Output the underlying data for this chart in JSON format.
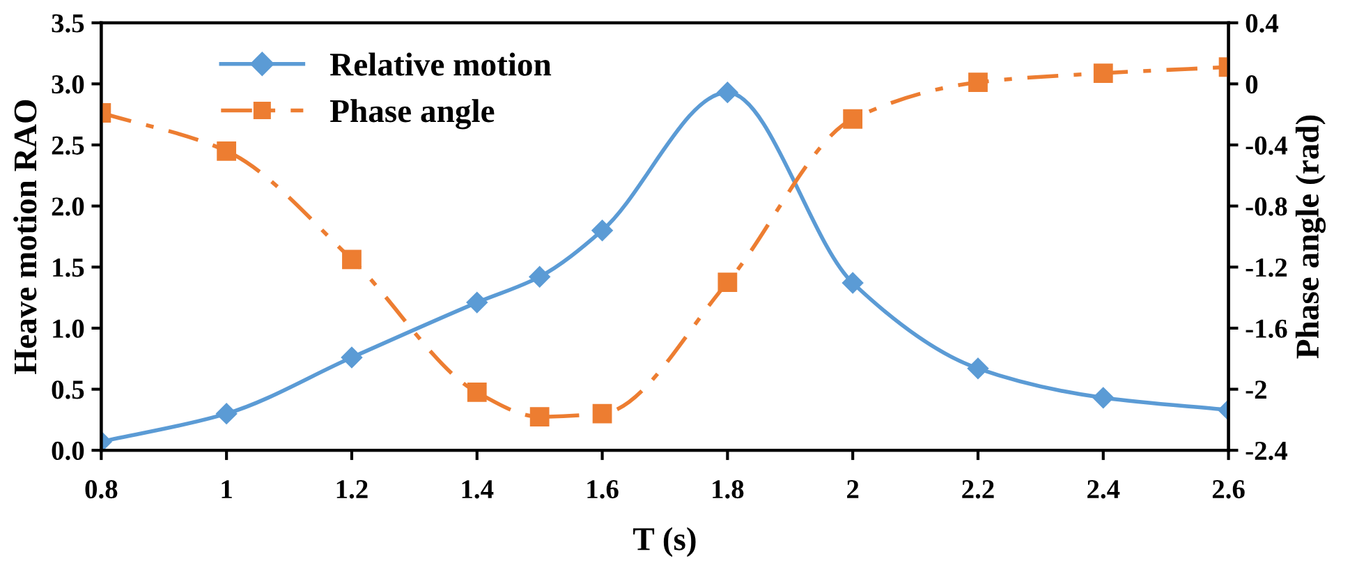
{
  "chart_data": {
    "type": "line",
    "xlabel": "T (s)",
    "ylabel": "Heave motion RAO",
    "y2label": "Phase angle (rad)",
    "x": [
      0.8,
      1.0,
      1.2,
      1.4,
      1.5,
      1.6,
      1.8,
      2.0,
      2.2,
      2.4,
      2.6
    ],
    "series": [
      {
        "name": "Relative motion",
        "color": "#5b9bd5",
        "marker": "diamond",
        "line_style": "solid",
        "values": [
          0.07,
          0.3,
          0.76,
          1.21,
          1.42,
          1.8,
          2.93,
          1.37,
          0.67,
          0.43,
          0.33
        ]
      },
      {
        "name": "Phase angle",
        "color": "#ed7d31",
        "marker": "square",
        "line_style": "dashdot",
        "axis": "y2",
        "values": [
          -0.19,
          -0.44,
          -1.15,
          -2.02,
          -2.18,
          -2.16,
          -1.3,
          -0.23,
          0.01,
          0.07,
          0.11
        ]
      }
    ],
    "xlim": [
      0.8,
      2.6
    ],
    "xticks": [
      {
        "value": 0.8,
        "label": "0.8"
      },
      {
        "value": 1,
        "label": "1"
      },
      {
        "value": 1.2,
        "label": "1.2"
      },
      {
        "value": 1.4,
        "label": "1.4"
      },
      {
        "value": 1.6,
        "label": "1.6"
      },
      {
        "value": 1.8,
        "label": "1.8"
      },
      {
        "value": 2,
        "label": "2"
      },
      {
        "value": 2.2,
        "label": "2.2"
      },
      {
        "value": 2.4,
        "label": "2.4"
      },
      {
        "value": 2.6,
        "label": "2.6"
      }
    ],
    "ylim": [
      0,
      3.5
    ],
    "yticks": [
      {
        "value": 0,
        "label": "0.0"
      },
      {
        "value": 0.5,
        "label": "0.5"
      },
      {
        "value": 1,
        "label": "1.0"
      },
      {
        "value": 1.5,
        "label": "1.5"
      },
      {
        "value": 2,
        "label": "2.0"
      },
      {
        "value": 2.5,
        "label": "2.5"
      },
      {
        "value": 3,
        "label": "3.0"
      },
      {
        "value": 3.5,
        "label": "3.5"
      }
    ],
    "y2lim": [
      -2.4,
      0.4
    ],
    "y2ticks": [
      -2.4,
      -2,
      -1.6,
      -1.2,
      -0.8,
      -0.4,
      0,
      0.4
    ],
    "grid": false,
    "legend": "top left"
  }
}
